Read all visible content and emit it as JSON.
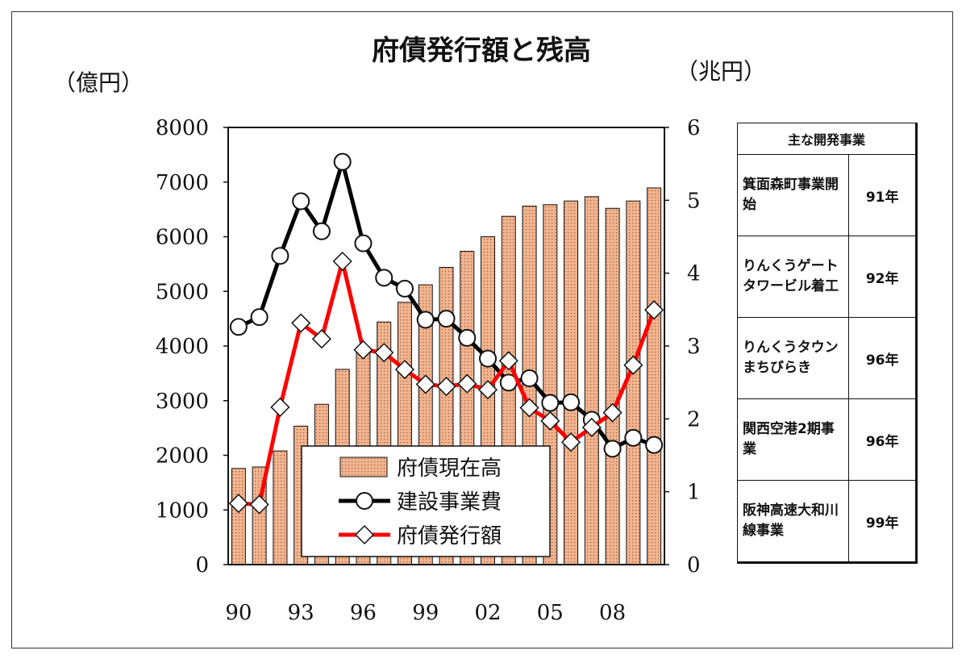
{
  "chart_data": {
    "type": "bar+line",
    "title": "府債発行額と残高",
    "left_unit": "（億円）",
    "right_unit": "（兆円）",
    "x_tick_labels": [
      "90",
      "93",
      "96",
      "99",
      "02",
      "05",
      "08"
    ],
    "x": [
      1990,
      1991,
      1992,
      1993,
      1994,
      1995,
      1996,
      1997,
      1998,
      1999,
      2000,
      2001,
      2002,
      2003,
      2004,
      2005,
      2006,
      2007,
      2008,
      2009,
      2010
    ],
    "left_axis": {
      "min": 0,
      "max": 8000,
      "ticks": [
        "0",
        "1000",
        "2000",
        "3000",
        "4000",
        "5000",
        "6000",
        "7000",
        "8000"
      ]
    },
    "right_axis": {
      "min": 0,
      "max": 6,
      "ticks": [
        "0",
        "1",
        "2",
        "3",
        "4",
        "5",
        "6"
      ]
    },
    "series": [
      {
        "name": "府債現在高",
        "type": "bar",
        "axis": "right",
        "color": "#f2b48e",
        "values": [
          1.32,
          1.34,
          1.56,
          1.9,
          2.2,
          2.68,
          2.93,
          3.33,
          3.6,
          3.84,
          4.08,
          4.3,
          4.5,
          4.78,
          4.92,
          4.94,
          4.99,
          5.05,
          4.89,
          4.99,
          5.17
        ]
      },
      {
        "name": "建設事業費",
        "type": "line",
        "axis": "left",
        "color": "#000000",
        "marker": "circle",
        "values": [
          4350,
          4530,
          5650,
          6650,
          6100,
          7370,
          5880,
          5250,
          5050,
          4480,
          4500,
          4150,
          3770,
          3330,
          3410,
          2960,
          2970,
          2650,
          2120,
          2320,
          2190
        ]
      },
      {
        "name": "府債発行額",
        "type": "line",
        "axis": "left",
        "color": "#ff0000",
        "marker": "diamond",
        "values": [
          1120,
          1100,
          2880,
          4420,
          4130,
          5550,
          3930,
          3880,
          3570,
          3300,
          3260,
          3310,
          3200,
          3730,
          2870,
          2630,
          2240,
          2510,
          2780,
          3650,
          4660
        ]
      }
    ],
    "legend": "inside-lower-left",
    "grid": false
  },
  "events_table": {
    "header": "主な開発事業",
    "rows": [
      {
        "event": "箕面森町事業開始",
        "year": "91年"
      },
      {
        "event": "りんくうゲートタワービル着工",
        "year": "92年"
      },
      {
        "event": "りんくうタウンまちびらき",
        "year": "96年"
      },
      {
        "event": "関西空港2期事業",
        "year": "96年"
      },
      {
        "event": "阪神高速大和川線事業",
        "year": "99年"
      }
    ]
  }
}
